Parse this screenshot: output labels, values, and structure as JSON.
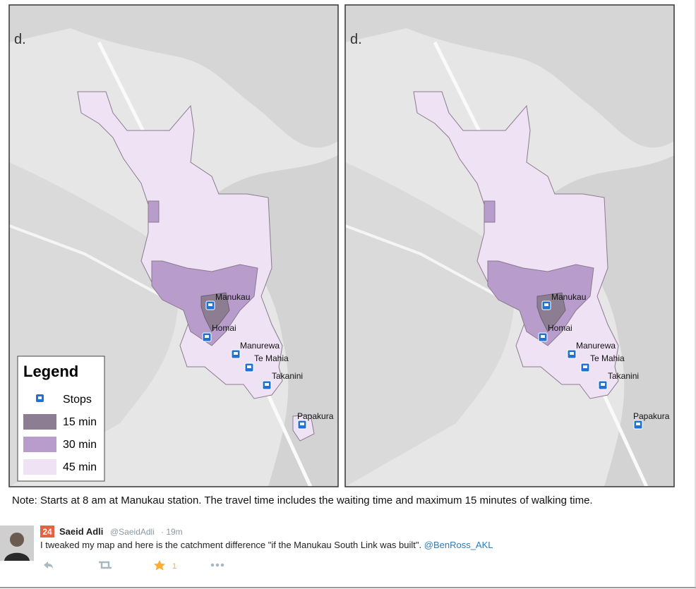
{
  "maps": [
    {
      "panel_label": "d.",
      "stops": [
        "Manukau",
        "Homai",
        "Manurewa",
        "Te Mahia",
        "Takanini",
        "Papakura"
      ]
    },
    {
      "panel_label": "d.",
      "stops": [
        "Manukau",
        "Homai",
        "Manurewa",
        "Te Mahia",
        "Takanini",
        "Papakura"
      ]
    }
  ],
  "legend": {
    "title": "Legend",
    "items": [
      "Stops",
      "15 min",
      "30 min",
      "45 min"
    ]
  },
  "note": "Note: Starts at 8 am at Manukau station. The travel time includes the waiting time and maximum 15 minutes of walking time.",
  "tweet": {
    "badge": 24,
    "author": "Saeid Adli",
    "handle": "@SaeidAdli",
    "time": "· 19m",
    "text": "I tweaked my map and here is the catchment difference \"if the Manukau South Link was built\".",
    "mention": "@BenRoss_AKL",
    "favorites": 1
  }
}
